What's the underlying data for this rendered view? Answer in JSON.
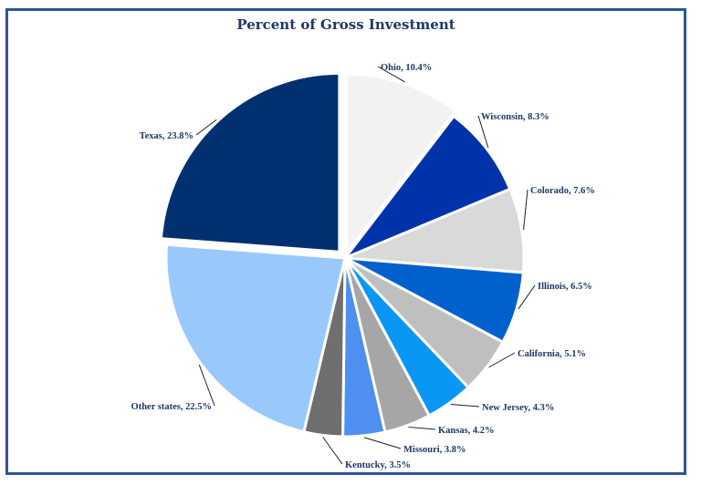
{
  "chart_data": {
    "type": "pie",
    "title": "Percent of Gross Investment",
    "slices": [
      {
        "name": "Ohio",
        "value": 10.4,
        "label": "Ohio, 10.4%",
        "color": "#f2f2f2",
        "icon": "pie-slice"
      },
      {
        "name": "Wisconsin",
        "value": 8.3,
        "label": "Wisconsin, 8.3%",
        "color": "#0033aa",
        "icon": "pie-slice"
      },
      {
        "name": "Colorado",
        "value": 7.6,
        "label": "Colorado, 7.6%",
        "color": "#d9d9d9",
        "icon": "pie-slice"
      },
      {
        "name": "Illinois",
        "value": 6.5,
        "label": "Illinois, 6.5%",
        "color": "#0061cc",
        "icon": "pie-slice"
      },
      {
        "name": "California",
        "value": 5.1,
        "label": "California, 5.1%",
        "color": "#bfbfbf",
        "icon": "pie-slice"
      },
      {
        "name": "New Jersey",
        "value": 4.3,
        "label": "New Jersey, 4.3%",
        "color": "#0a96f5",
        "icon": "pie-slice"
      },
      {
        "name": "Kansas",
        "value": 4.2,
        "label": "Kansas, 4.2%",
        "color": "#a6a6a6",
        "icon": "pie-slice"
      },
      {
        "name": "Missouri",
        "value": 3.8,
        "label": "Missouri, 3.8%",
        "color": "#4f8ff0",
        "icon": "pie-slice"
      },
      {
        "name": "Kentucky",
        "value": 3.5,
        "label": "Kentucky, 3.5%",
        "color": "#6f6f6f",
        "icon": "pie-slice"
      },
      {
        "name": "Other states",
        "value": 22.5,
        "label": "Other states, 22.5%",
        "color": "#99c9fb",
        "icon": "pie-slice"
      },
      {
        "name": "Texas",
        "value": 23.8,
        "label": "Texas, 23.8%",
        "color": "#003070",
        "icon": "pie-slice"
      }
    ],
    "start_angle_deg": 0,
    "direction": "clockwise",
    "legend": "none"
  }
}
